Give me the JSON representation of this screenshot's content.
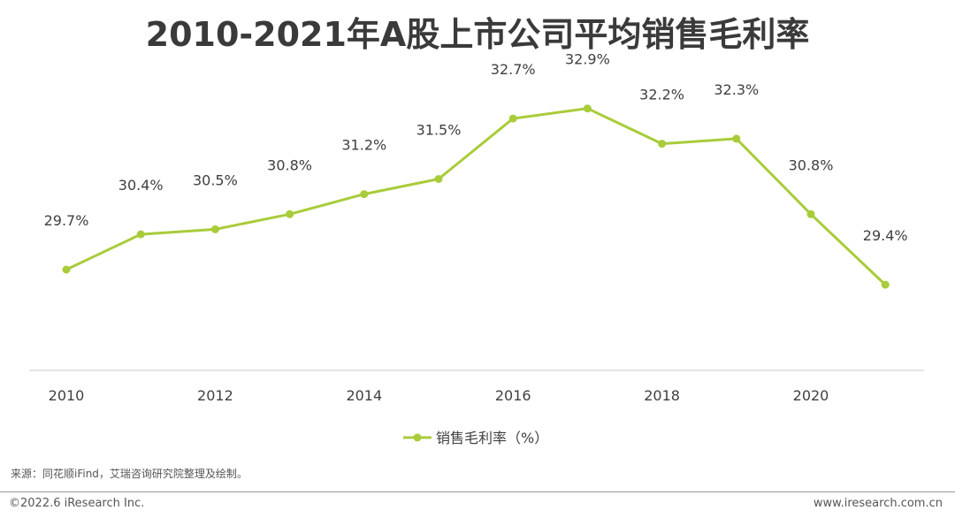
{
  "chart_data": {
    "type": "line",
    "title": "2010-2021年A股上市公司平均销售毛利率",
    "x": [
      2010,
      2011,
      2012,
      2013,
      2014,
      2015,
      2016,
      2017,
      2018,
      2019,
      2020,
      2021
    ],
    "x_tick_labels": [
      "2010",
      "2012",
      "2014",
      "2016",
      "2018",
      "2020"
    ],
    "series": [
      {
        "name": "销售毛利率（%）",
        "values": [
          29.7,
          30.4,
          30.5,
          30.8,
          31.2,
          31.5,
          32.7,
          32.9,
          32.2,
          32.3,
          30.8,
          29.4
        ],
        "labels": [
          "29.7%",
          "30.4%",
          "30.5%",
          "30.8%",
          "31.2%",
          "31.5%",
          "32.7%",
          "32.9%",
          "32.2%",
          "32.3%",
          "30.8%",
          "29.4%"
        ]
      }
    ],
    "ylim": [
      27.7,
      34.0
    ],
    "xlabel": "",
    "ylabel": "",
    "grid": false,
    "legend": "bottom-center"
  },
  "colors": {
    "series": "#a9cc3a",
    "axis": "#c8c8c8",
    "text": "#404040"
  },
  "source_note": "来源：同花顺iFind，艾瑞咨询研究院整理及绘制。",
  "footer": {
    "copyright": "©2022.6 iResearch Inc.",
    "website": "www.iresearch.com.cn"
  }
}
